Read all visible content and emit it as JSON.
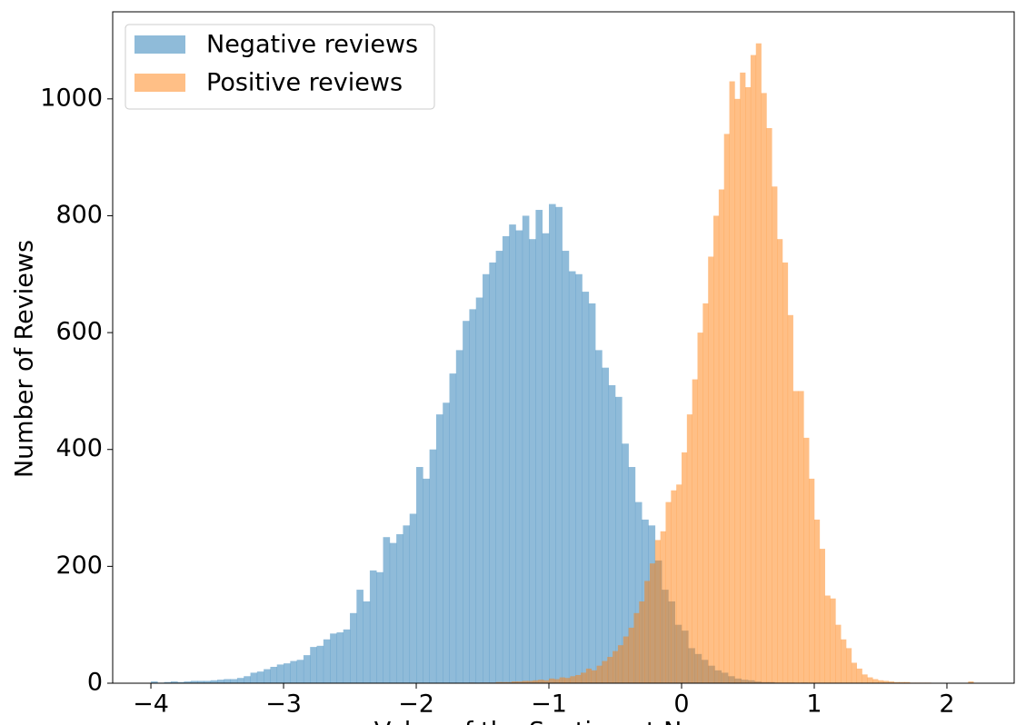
{
  "chart_data": {
    "type": "histogram",
    "ylabel": "Number of Reviews",
    "xlabel": "Value of the Sentiment Neuron",
    "xlim": [
      -4.288,
      2.507
    ],
    "ylim": [
      0,
      1149
    ],
    "xticks": [
      {
        "value": -4,
        "label": "−4"
      },
      {
        "value": -3,
        "label": "−3"
      },
      {
        "value": -2,
        "label": "−2"
      },
      {
        "value": -1,
        "label": "−1"
      },
      0,
      1,
      2
    ],
    "yticks": [
      0,
      200,
      400,
      600,
      800,
      1000
    ],
    "alpha": 0.5,
    "legend": "upper left",
    "grid": false,
    "series": [
      {
        "name": "Negative reviews",
        "color": "#1f77b4",
        "bins": [
          -4,
          -3.95,
          -3.9,
          -3.85,
          -3.8,
          -3.75,
          -3.7,
          -3.65,
          -3.6,
          -3.55,
          -3.5,
          -3.45,
          -3.4,
          -3.35,
          -3.3,
          -3.25,
          -3.2,
          -3.15,
          -3.1,
          -3.05,
          -3,
          -2.95,
          -2.9,
          -2.85,
          -2.8,
          -2.75,
          -2.7,
          -2.65,
          -2.6,
          -2.55,
          -2.5,
          -2.45,
          -2.4,
          -2.35,
          -2.3,
          -2.25,
          -2.2,
          -2.15,
          -2.1,
          -2.05,
          -2,
          -1.95,
          -1.9,
          -1.85,
          -1.8,
          -1.75,
          -1.7,
          -1.65,
          -1.6,
          -1.55,
          -1.5,
          -1.45,
          -1.4,
          -1.35,
          -1.3,
          -1.25,
          -1.2,
          -1.15,
          -1.1,
          -1.05,
          -1,
          -0.95,
          -0.9,
          -0.85,
          -0.8,
          -0.75,
          -0.7,
          -0.65,
          -0.6,
          -0.55,
          -0.5,
          -0.45,
          -0.4,
          -0.35,
          -0.3,
          -0.25,
          -0.2,
          -0.15,
          -0.1,
          -0.05,
          0,
          0.05,
          0.1,
          0.15,
          0.2,
          0.25,
          0.3,
          0.35,
          0.4,
          0.45,
          0.5,
          0.55,
          0.6,
          0.65,
          0.7,
          0.75,
          0.8,
          0.85,
          0.9,
          0.95,
          1
        ],
        "values": [
          3,
          1,
          2,
          3,
          2,
          3,
          4,
          4,
          4,
          5,
          6,
          7,
          7,
          9,
          12,
          18,
          20,
          24,
          28,
          32,
          34,
          38,
          40,
          48,
          62,
          64,
          75,
          85,
          87,
          92,
          120,
          160,
          140,
          193,
          190,
          250,
          240,
          255,
          270,
          290,
          370,
          350,
          400,
          460,
          480,
          530,
          570,
          620,
          640,
          660,
          700,
          720,
          740,
          765,
          785,
          775,
          800,
          760,
          810,
          770,
          820,
          815,
          740,
          705,
          700,
          670,
          650,
          570,
          540,
          510,
          490,
          410,
          370,
          310,
          280,
          270,
          210,
          160,
          140,
          100,
          90,
          60,
          50,
          40,
          30,
          22,
          18,
          12,
          8,
          6,
          5,
          3,
          2,
          2,
          1,
          1,
          1,
          0,
          1,
          0
        ]
      },
      {
        "name": "Positive reviews",
        "color": "#ff7f0e",
        "bins": [
          -1.6,
          -1.56,
          -1.52,
          -1.48,
          -1.44,
          -1.4,
          -1.36,
          -1.32,
          -1.28,
          -1.24,
          -1.2,
          -1.16,
          -1.12,
          -1.08,
          -1.04,
          -1,
          -0.96,
          -0.92,
          -0.88,
          -0.84,
          -0.8,
          -0.76,
          -0.72,
          -0.68,
          -0.64,
          -0.6,
          -0.56,
          -0.52,
          -0.48,
          -0.44,
          -0.4,
          -0.36,
          -0.32,
          -0.28,
          -0.24,
          -0.2,
          -0.16,
          -0.12,
          -0.08,
          -0.04,
          0,
          0.04,
          0.08,
          0.12,
          0.16,
          0.2,
          0.24,
          0.28,
          0.32,
          0.36,
          0.4,
          0.44,
          0.48,
          0.52,
          0.56,
          0.6,
          0.64,
          0.68,
          0.72,
          0.76,
          0.8,
          0.84,
          0.88,
          0.92,
          0.96,
          1,
          1.04,
          1.08,
          1.12,
          1.16,
          1.2,
          1.24,
          1.28,
          1.32,
          1.36,
          1.4,
          1.44,
          1.48,
          1.52,
          1.56,
          1.6,
          1.64,
          1.68,
          1.72,
          1.76,
          1.8,
          1.84,
          1.88,
          1.92,
          1.96,
          2,
          2.04,
          2.08,
          2.12,
          2.16,
          2.2
        ],
        "values": [
          1,
          0,
          1,
          1,
          1,
          2,
          2,
          2,
          3,
          3,
          4,
          4,
          5,
          6,
          5,
          8,
          7,
          10,
          9,
          12,
          14,
          18,
          25,
          22,
          30,
          38,
          45,
          55,
          65,
          80,
          95,
          120,
          140,
          175,
          205,
          245,
          260,
          310,
          330,
          340,
          395,
          460,
          520,
          600,
          650,
          730,
          800,
          845,
          940,
          1030,
          1000,
          1045,
          1020,
          1075,
          1095,
          1010,
          950,
          850,
          760,
          720,
          630,
          500,
          500,
          420,
          350,
          280,
          230,
          150,
          145,
          100,
          75,
          60,
          35,
          25,
          15,
          10,
          7,
          5,
          4,
          3,
          2,
          2,
          2,
          1,
          1,
          1,
          1,
          0,
          0,
          0,
          0,
          0,
          0,
          0,
          3
        ]
      }
    ]
  }
}
